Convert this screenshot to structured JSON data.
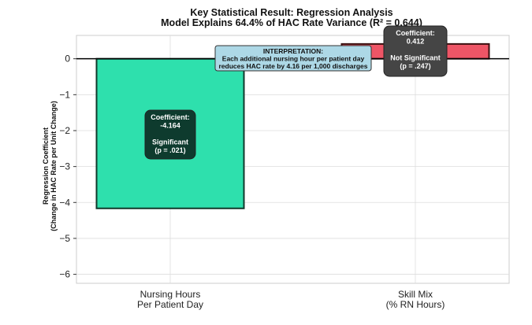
{
  "chart_data": {
    "type": "bar",
    "title": "Key Statistical Result: Regression Analysis",
    "subtitle": "Model Explains 64.4% of HAC Rate Variance (R² = 0.644)",
    "ylabel_lines": [
      "Regression Coefficient",
      "(Change in HAC Rate per Unit Change)"
    ],
    "xlabel": "",
    "categories": [
      [
        "Nursing Hours",
        "Per Patient Day"
      ],
      [
        "Skill Mix",
        "(% RN Hours)"
      ]
    ],
    "values": [
      -4.164,
      0.412
    ],
    "ylim": [
      -6.25,
      0.65
    ],
    "yticks": [
      0,
      -1,
      -2,
      -3,
      -4,
      -5,
      -6
    ],
    "ytick_labels": [
      "0",
      "−1",
      "−2",
      "−3",
      "−4",
      "−5",
      "−6"
    ],
    "grid": true,
    "colors": {
      "bar_significant": "#2ee0ad",
      "bar_significant_edge": "#103a2c",
      "bar_not_significant": "#ee5566",
      "bar_not_significant_edge": "#3a1010",
      "box_significant": "#0e3b2e",
      "box_not_significant": "#454545",
      "interpretation_bg": "#add8e6",
      "grid": "#dddddd"
    },
    "annotations": [
      {
        "lines": [
          "Coefficient:",
          "-4.164",
          "",
          "Significant",
          "(p = .021)"
        ]
      },
      {
        "lines": [
          "Coefficient:",
          "0.412",
          "",
          "Not Significant",
          "(p = .247)"
        ]
      }
    ],
    "interpretation": {
      "lines": [
        "INTERPRETATION:",
        "Each additional nursing hour per patient day",
        "reduces HAC rate by 4.16 per 1,000 discharges"
      ]
    }
  }
}
